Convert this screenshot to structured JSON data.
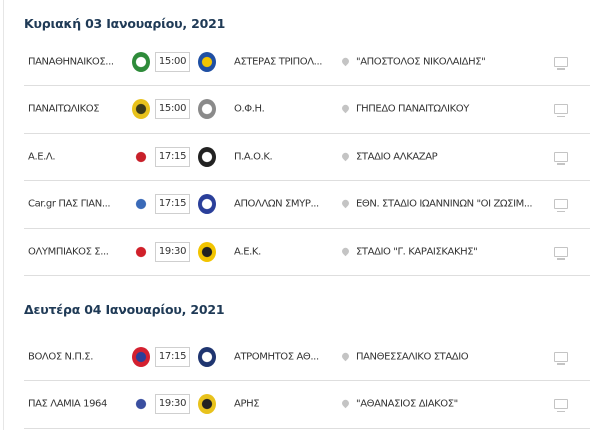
{
  "days": [
    {
      "title": "Κυριακή 03 Ιανουαρίου, 2021",
      "matches": [
        {
          "home": "ΠΑΝΑΘΗΝΑΪΚΟΣ...",
          "time": "15:00",
          "away": "ΑΣΤΕΡΑΣ ΤΡΙΠΟΛ...",
          "venue": "\"ΑΠΟΣΤΟΛΟΣ ΝΙΚΟΛΑΪΔΗΣ\"",
          "home_colors": [
            "#2e8b3a",
            "#ffffff"
          ],
          "away_colors": [
            "#1f4fa3",
            "#f2c400"
          ]
        },
        {
          "home": "ΠΑΝΑΙΤΩΛΙΚΟΣ",
          "time": "15:00",
          "away": "Ο.Φ.Η.",
          "venue": "ΓΗΠΕΔΟ ΠΑΝΑΙΤΩΛΙΚΟΥ",
          "home_colors": [
            "#e8c21c",
            "#3a3a1a"
          ],
          "away_colors": [
            "#8a8a8a",
            "#ffffff"
          ]
        },
        {
          "home": "Α.Ε.Λ.",
          "time": "17:15",
          "away": "Π.Α.Ο.Κ.",
          "venue": "ΣΤΑΔΙΟ ΑΛΚΑΖΑΡ",
          "home_colors": [
            "#ffffff",
            "#c8202a"
          ],
          "away_colors": [
            "#222222",
            "#ffffff"
          ]
        },
        {
          "home": "Car.gr ΠΑΣ ΓΙΑΝ...",
          "time": "17:15",
          "away": "ΑΠΟΛΛΩΝ ΣΜΥΡ...",
          "venue": "ΕΘΝ. ΣΤΑΔΙΟ ΙΩΑΝΝΙΝΩΝ \"ΟΙ ΖΩΣΙΜ...",
          "home_colors": [
            "#ffffff",
            "#3a6ab8"
          ],
          "away_colors": [
            "#2a3f9a",
            "#ffffff"
          ]
        },
        {
          "home": "ΟΛΥΜΠΙΑΚΟΣ Σ...",
          "time": "19:30",
          "away": "Α.Ε.Κ.",
          "venue": "ΣΤΑΔΙΟ \"Γ. ΚΑΡΑΪΣΚΑΚΗΣ\"",
          "home_colors": [
            "#ffffff",
            "#d0202a"
          ],
          "away_colors": [
            "#f2c400",
            "#222222"
          ]
        }
      ]
    },
    {
      "title": "Δευτέρα 04 Ιανουαρίου, 2021",
      "matches": [
        {
          "home": "ΒΟΛΟΣ Ν.Π.Σ.",
          "time": "17:15",
          "away": "ΑΤΡΟΜΗΤΟΣ ΑΘ...",
          "venue": "ΠΑΝΘΕΣΣΑΛΙΚΟ ΣΤΑΔΙΟ",
          "home_colors": [
            "#d42030",
            "#2a3f9a"
          ],
          "away_colors": [
            "#1f3570",
            "#ffffff"
          ]
        },
        {
          "home": "ΠΑΣ ΛΑΜΙΑ 1964",
          "time": "19:30",
          "away": "ΑΡΗΣ",
          "venue": "\"ΑΘΑΝΑΣΙΟΣ ΔΙΑΚΟΣ\"",
          "home_colors": [
            "#ffffff",
            "#3a4fa0"
          ],
          "away_colors": [
            "#e8c21c",
            "#222222"
          ]
        }
      ]
    }
  ]
}
